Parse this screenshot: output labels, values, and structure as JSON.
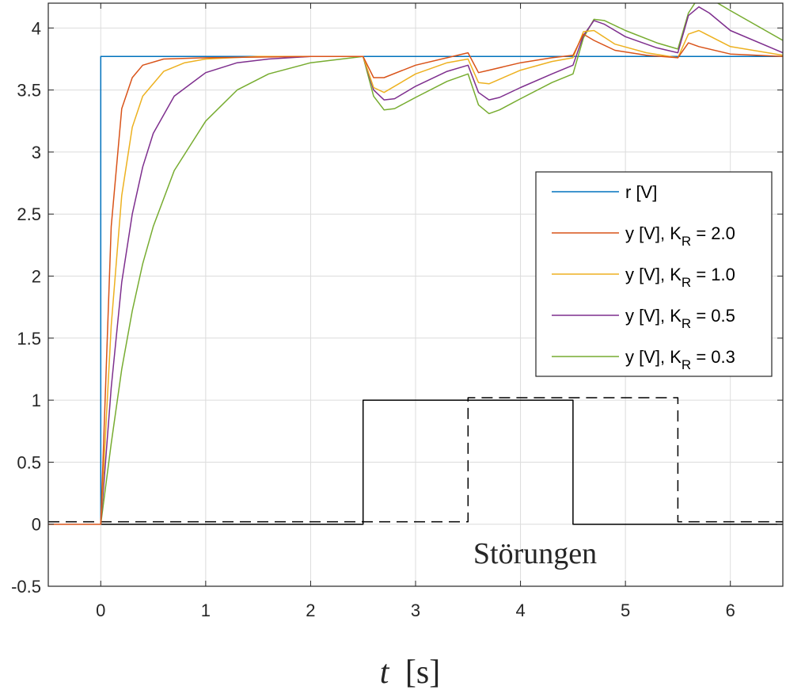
{
  "chart_data": {
    "type": "line",
    "title": "",
    "xlabel": {
      "var": "t",
      "unit": "[s]"
    },
    "ylabel": "",
    "xlim": [
      -0.5,
      6.5
    ],
    "ylim": [
      -0.5,
      4.2
    ],
    "xticks": [
      0,
      1,
      2,
      3,
      4,
      5,
      6
    ],
    "yticks": [
      -0.5,
      0,
      0.5,
      1,
      1.5,
      2,
      2.5,
      3,
      3.5,
      4
    ],
    "grid": true,
    "legend_position": "right",
    "annotation": "Störungen",
    "series": [
      {
        "name": "r [V]",
        "legend_main": "r [V]",
        "color": "#0072BD",
        "style": "solid",
        "x": [
          -0.5,
          0,
          0,
          6.5
        ],
        "y": [
          0,
          0,
          3.77,
          3.77
        ]
      },
      {
        "name": "y [V], K_R = 2.0",
        "legend_main": "y [V], K",
        "legend_sub": "R",
        "legend_tail": " = 2.0",
        "color": "#D95319",
        "style": "solid",
        "x": [
          -0.5,
          0,
          0.1,
          0.2,
          0.3,
          0.4,
          0.6,
          1.0,
          2.0,
          2.5,
          2.6,
          2.7,
          3.0,
          3.3,
          3.5,
          3.6,
          3.7,
          4.0,
          4.3,
          4.5,
          4.6,
          4.7,
          4.9,
          5.2,
          5.5,
          5.6,
          5.7,
          6.0,
          6.5
        ],
        "y": [
          0,
          0,
          2.4,
          3.35,
          3.6,
          3.7,
          3.75,
          3.76,
          3.77,
          3.77,
          3.6,
          3.6,
          3.7,
          3.76,
          3.8,
          3.64,
          3.66,
          3.72,
          3.76,
          3.78,
          3.95,
          3.9,
          3.82,
          3.78,
          3.76,
          3.88,
          3.85,
          3.79,
          3.77
        ]
      },
      {
        "name": "y [V], K_R = 1.0",
        "legend_main": "y [V], K",
        "legend_sub": "R",
        "legend_tail": " = 1.0",
        "color": "#EDB120",
        "style": "solid",
        "x": [
          -0.5,
          0,
          0.1,
          0.2,
          0.3,
          0.4,
          0.6,
          0.8,
          1.0,
          1.5,
          2.0,
          2.5,
          2.6,
          2.7,
          3.0,
          3.3,
          3.5,
          3.6,
          3.7,
          4.0,
          4.3,
          4.5,
          4.6,
          4.7,
          4.9,
          5.2,
          5.5,
          5.6,
          5.7,
          6.0,
          6.5
        ],
        "y": [
          0,
          0,
          1.6,
          2.65,
          3.2,
          3.45,
          3.65,
          3.72,
          3.75,
          3.77,
          3.77,
          3.77,
          3.52,
          3.48,
          3.63,
          3.72,
          3.75,
          3.56,
          3.55,
          3.66,
          3.73,
          3.76,
          3.97,
          3.98,
          3.87,
          3.8,
          3.76,
          3.95,
          3.98,
          3.85,
          3.78
        ]
      },
      {
        "name": "y [V], K_R = 0.5",
        "legend_main": "y [V], K",
        "legend_sub": "R",
        "legend_tail": " = 0.5",
        "color": "#7E2F8E",
        "style": "solid",
        "x": [
          -0.5,
          0,
          0.1,
          0.2,
          0.3,
          0.4,
          0.5,
          0.7,
          1.0,
          1.3,
          1.6,
          2.0,
          2.5,
          2.6,
          2.7,
          2.8,
          3.0,
          3.3,
          3.5,
          3.6,
          3.7,
          3.8,
          4.0,
          4.3,
          4.5,
          4.6,
          4.7,
          4.8,
          5.0,
          5.3,
          5.5,
          5.6,
          5.7,
          5.8,
          6.0,
          6.5
        ],
        "y": [
          0,
          0,
          1.1,
          1.95,
          2.5,
          2.88,
          3.15,
          3.45,
          3.64,
          3.72,
          3.75,
          3.77,
          3.77,
          3.5,
          3.42,
          3.43,
          3.53,
          3.65,
          3.7,
          3.48,
          3.42,
          3.44,
          3.52,
          3.63,
          3.7,
          3.94,
          4.06,
          4.03,
          3.93,
          3.84,
          3.8,
          4.1,
          4.17,
          4.12,
          3.98,
          3.8
        ]
      },
      {
        "name": "y [V], K_R = 0.3",
        "legend_main": "y [V], K",
        "legend_sub": "R",
        "legend_tail": " = 0.3",
        "color": "#77AC30",
        "style": "solid",
        "x": [
          -0.5,
          0,
          0.1,
          0.2,
          0.3,
          0.4,
          0.5,
          0.7,
          1.0,
          1.3,
          1.6,
          2.0,
          2.5,
          2.6,
          2.7,
          2.8,
          3.0,
          3.3,
          3.5,
          3.6,
          3.7,
          3.8,
          4.0,
          4.3,
          4.5,
          4.6,
          4.7,
          4.8,
          5.0,
          5.3,
          5.5,
          5.6,
          5.7,
          5.8,
          6.0,
          6.5
        ],
        "y": [
          0,
          0,
          0.65,
          1.25,
          1.72,
          2.1,
          2.4,
          2.85,
          3.25,
          3.5,
          3.63,
          3.72,
          3.77,
          3.45,
          3.34,
          3.35,
          3.44,
          3.57,
          3.63,
          3.38,
          3.31,
          3.34,
          3.43,
          3.56,
          3.63,
          3.92,
          4.07,
          4.06,
          3.98,
          3.88,
          3.83,
          4.12,
          4.25,
          4.24,
          4.14,
          3.9
        ]
      },
      {
        "name": "",
        "color": "#000000",
        "style": "solid",
        "x": [
          -0.5,
          2.5,
          2.5,
          4.5,
          4.5,
          6.5
        ],
        "y": [
          0,
          0,
          1,
          1,
          0,
          0
        ]
      },
      {
        "name": "",
        "color": "#000000",
        "style": "dashed",
        "x": [
          -0.5,
          3.5,
          3.5,
          5.5,
          5.5,
          6.5
        ],
        "y": [
          0.02,
          0.02,
          1.02,
          1.02,
          0.02,
          0.02
        ]
      }
    ]
  }
}
